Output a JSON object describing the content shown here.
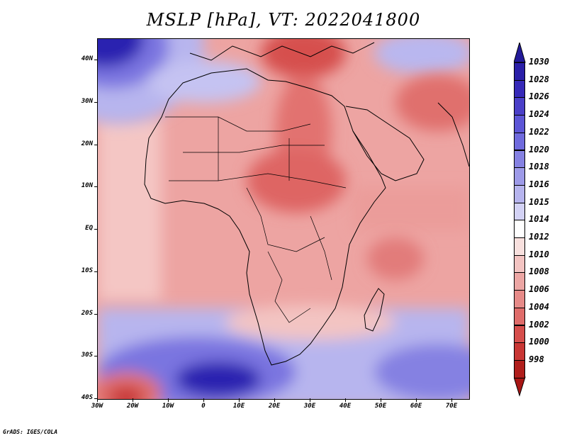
{
  "title": "MSLP [hPa], VT: 2022041800",
  "map": {
    "lat_labels": [
      "40N",
      "30N",
      "20N",
      "10N",
      "EQ",
      "10S",
      "20S",
      "30S",
      "40S"
    ],
    "lon_labels": [
      "30W",
      "20W",
      "10W",
      "0",
      "10E",
      "20E",
      "30E",
      "40E",
      "50E",
      "60E",
      "70E"
    ],
    "colors": {
      "background_low": "#ec9a98",
      "very_low": "#d9534f",
      "high": "#7a78e0",
      "very_high": "#2a21b0"
    }
  },
  "colorbar": {
    "levels": [
      "1030",
      "1028",
      "1026",
      "1024",
      "1022",
      "1020",
      "1018",
      "1016",
      "1015",
      "1014",
      "1012",
      "1010",
      "1008",
      "1006",
      "1004",
      "1002",
      "1000",
      "998"
    ],
    "colors": [
      "#2a1fa8",
      "#3629b8",
      "#4a3fc8",
      "#5c55d6",
      "#6f6add",
      "#8581e2",
      "#9d9ae8",
      "#b6b4ee",
      "#d3d2f5",
      "#ffffff",
      "#f8e0de",
      "#f3c4c2",
      "#eca6a4",
      "#e68a88",
      "#df6c6a",
      "#d64e4c",
      "#c83634",
      "#b01e1c"
    ]
  },
  "credit": "GrADS: IGES/COLA"
}
